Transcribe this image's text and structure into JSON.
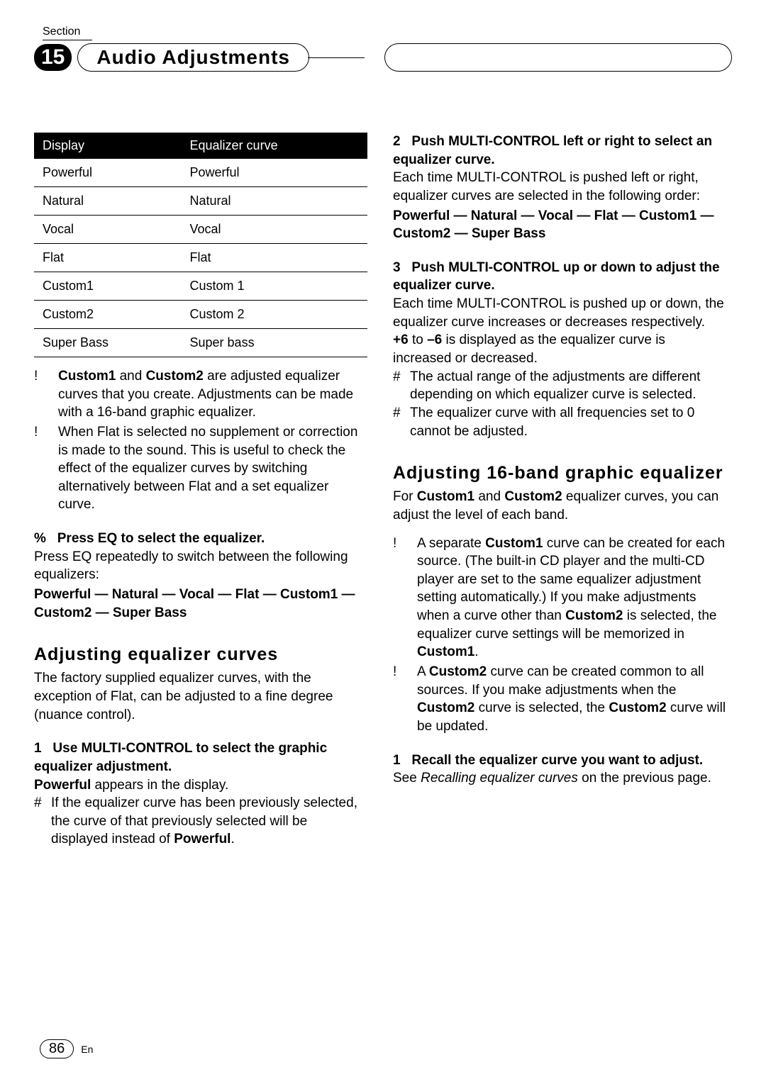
{
  "header": {
    "section_label": "Section",
    "section_number": "15",
    "title": "Audio Adjustments"
  },
  "left_col": {
    "table": {
      "headers": [
        "Display",
        "Equalizer curve"
      ],
      "rows": [
        [
          "Powerful",
          "Powerful"
        ],
        [
          "Natural",
          "Natural"
        ],
        [
          "Vocal",
          "Vocal"
        ],
        [
          "Flat",
          "Flat"
        ],
        [
          "Custom1",
          "Custom 1"
        ],
        [
          "Custom2",
          "Custom 2"
        ],
        [
          "Super Bass",
          "Super bass"
        ]
      ]
    },
    "bullets": [
      {
        "marker": "!",
        "bold_lead": "Custom1",
        "mid": " and ",
        "bold_lead2": "Custom2",
        "rest": " are adjusted equalizer curves that you create. Adjustments can be made with a 16-band graphic equalizer."
      },
      {
        "marker": "!",
        "text": "When Flat is selected no supplement or correction is made to the sound. This is useful to check the effect of the equalizer curves by switching alternatively between Flat and a set equalizer curve."
      }
    ],
    "step_percent": {
      "marker": "%",
      "head": "Press EQ to select the equalizer.",
      "body": "Press EQ repeatedly to switch between the following equalizers:",
      "seq": "Powerful — Natural — Vocal — Flat — Custom1 — Custom2 — Super Bass"
    },
    "subheading": "Adjusting equalizer curves",
    "sub_body": "The factory supplied equalizer curves, with the exception of Flat, can be adjusted to a fine degree (nuance control).",
    "step1": {
      "num": "1",
      "head": "Use MULTI-CONTROL to select the graphic equalizer adjustment.",
      "body_line1_bold": "Powerful",
      "body_line1_rest": " appears in the display.",
      "note_marker": "#",
      "note": "If the equalizer curve has been previously selected, the curve of that previously selected will be displayed instead of ",
      "note_bold": "Powerful",
      "note_end": "."
    }
  },
  "right_col": {
    "step2": {
      "num": "2",
      "head": "Push MULTI-CONTROL left or right to select an equalizer curve.",
      "body": "Each time MULTI-CONTROL is pushed left or right, equalizer curves are selected in the following order:",
      "seq": "Powerful — Natural — Vocal — Flat — Custom1 — Custom2 — Super Bass"
    },
    "step3": {
      "num": "3",
      "head": "Push MULTI-CONTROL up or down to adjust the equalizer curve.",
      "body1": "Each time MULTI-CONTROL is pushed up or down, the equalizer curve increases or decreases respectively.",
      "body2_bold1": "+6",
      "body2_mid": " to ",
      "body2_bold2": "–6",
      "body2_rest": " is displayed as the equalizer curve is increased or decreased.",
      "note1_marker": "#",
      "note1": "The actual range of the adjustments are different depending on which equalizer curve is selected.",
      "note2_marker": "#",
      "note2": "The equalizer curve with all frequencies set to 0 cannot be adjusted."
    },
    "subheading": "Adjusting 16-band graphic equalizer",
    "sub_body_pre": "For ",
    "sub_body_b1": "Custom1",
    "sub_body_mid": " and ",
    "sub_body_b2": "Custom2",
    "sub_body_rest": " equalizer curves, you can adjust the level of each band.",
    "bullets": [
      {
        "marker": "!",
        "text_pre": "A separate ",
        "b1": "Custom1",
        "text_mid1": " curve can be created for each source. (The built-in CD player and the multi-CD player are set to the same equalizer adjustment setting automatically.) If you make adjustments when a curve other than ",
        "b2": "Custom2",
        "text_mid2": " is selected, the equalizer curve settings will be memorized in ",
        "b3": "Custom1",
        "text_end": "."
      },
      {
        "marker": "!",
        "text_pre": "A ",
        "b1": "Custom2",
        "text_mid1": " curve can be created common to all sources. If you make adjustments when the ",
        "b2": "Custom2",
        "text_mid2": " curve is selected, the ",
        "b3": "Custom2",
        "text_end": " curve will be updated."
      }
    ],
    "step1b": {
      "num": "1",
      "head": "Recall the equalizer curve you want to adjust.",
      "body_pre": "See ",
      "body_ital": "Recalling equalizer curves",
      "body_rest": " on the previous page."
    }
  },
  "footer": {
    "page_num": "86",
    "lang": "En"
  }
}
